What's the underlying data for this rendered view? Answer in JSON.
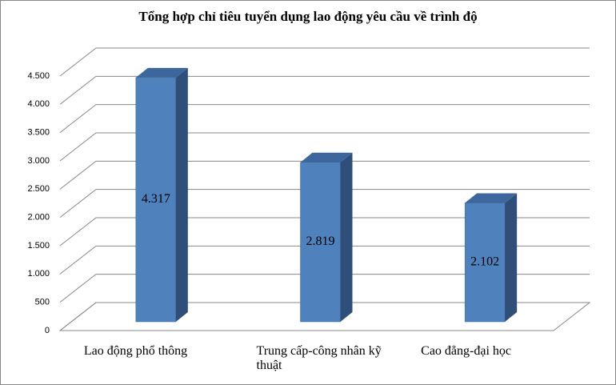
{
  "chart_data": {
    "type": "bar3d",
    "title": "Tổng hợp chỉ tiêu tuyển dụng lao động yêu cầu về trình  độ",
    "categories": [
      "Lao động phổ thông",
      "Trung cấp-công nhân kỹ thuật",
      "Cao đẳng-đại học"
    ],
    "values": [
      4317,
      2819,
      2102
    ],
    "value_labels": [
      "4.317",
      "2.819",
      "2.102"
    ],
    "color": "#4f81bd",
    "ylim": [
      0,
      4500
    ],
    "yticks": [
      0,
      500,
      {
        "value": 1000,
        "label": "1.000"
      },
      {
        "value": 1500,
        "label": "1.500"
      },
      {
        "value": 2000,
        "label": "2.000"
      },
      {
        "value": 2500,
        "label": "2.500"
      },
      {
        "value": 3000,
        "label": "3.000"
      },
      {
        "value": 3500,
        "label": "3.500"
      },
      {
        "value": 4000,
        "label": "4.000"
      },
      {
        "value": 4500,
        "label": "4.500"
      }
    ],
    "grid": true
  }
}
